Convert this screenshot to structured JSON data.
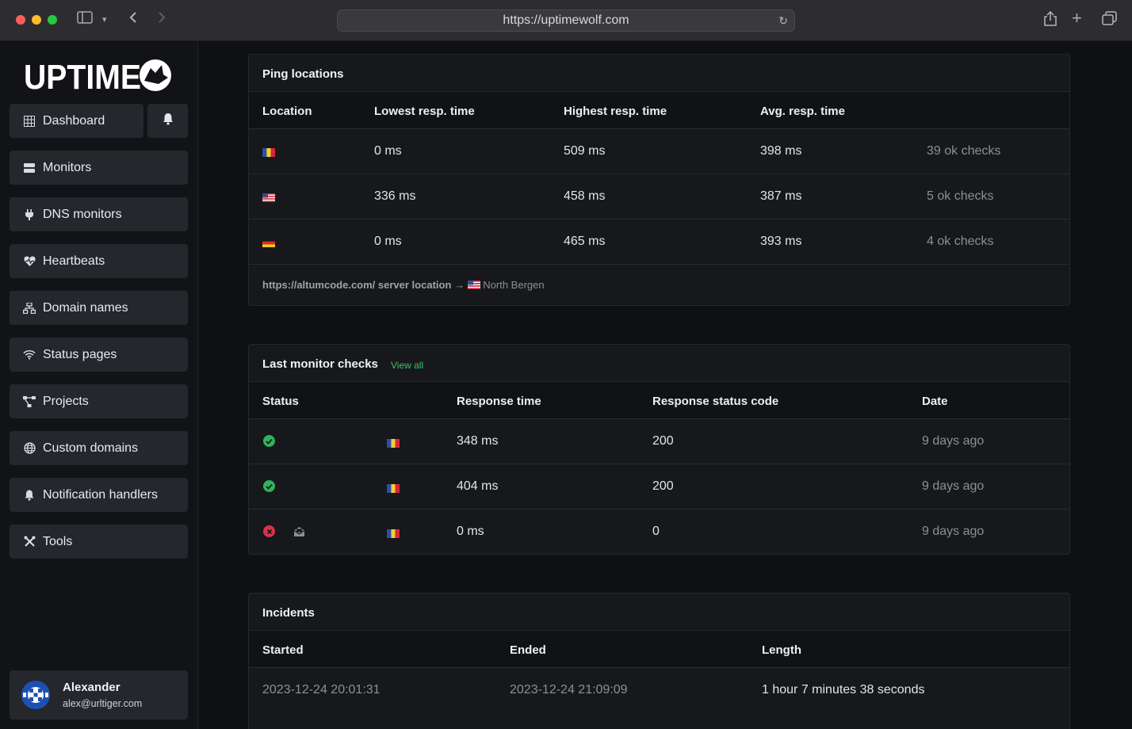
{
  "browser": {
    "url": "https://uptimewolf.com"
  },
  "sidebar": {
    "logo_text": "UPTIME",
    "items": [
      {
        "label": "Dashboard",
        "icon": "grid-icon"
      },
      {
        "label": "Monitors",
        "icon": "server-icon"
      },
      {
        "label": "DNS monitors",
        "icon": "plug-icon"
      },
      {
        "label": "Heartbeats",
        "icon": "heart-pulse-icon"
      },
      {
        "label": "Domain names",
        "icon": "network-icon"
      },
      {
        "label": "Status pages",
        "icon": "wifi-icon"
      },
      {
        "label": "Projects",
        "icon": "project-diagram-icon"
      },
      {
        "label": "Custom domains",
        "icon": "globe-icon"
      },
      {
        "label": "Notification handlers",
        "icon": "bell-icon"
      },
      {
        "label": "Tools",
        "icon": "tools-icon"
      }
    ],
    "user": {
      "name": "Alexander",
      "email": "alex@urltiger.com"
    }
  },
  "ping_locations": {
    "title": "Ping locations",
    "columns": [
      "Location",
      "Lowest resp. time",
      "Highest resp. time",
      "Avg. resp. time"
    ],
    "rows": [
      {
        "flag": "RO",
        "lowest": "0 ms",
        "highest": "509 ms",
        "avg": "398 ms",
        "checks": "39 ok checks"
      },
      {
        "flag": "US",
        "lowest": "336 ms",
        "highest": "458 ms",
        "avg": "387 ms",
        "checks": "5 ok checks"
      },
      {
        "flag": "DE",
        "lowest": "0 ms",
        "highest": "465 ms",
        "avg": "393 ms",
        "checks": "4 ok checks"
      }
    ],
    "server_location": {
      "label": "https://altumcode.com/ server location",
      "arrow": "→",
      "city": "North Bergen"
    }
  },
  "last_checks": {
    "title": "Last monitor checks",
    "view_all": "View all",
    "columns": [
      "Status",
      "Response time",
      "Response status code",
      "Date"
    ],
    "rows": [
      {
        "status": "ok",
        "response_time": "348 ms",
        "code": "200",
        "date": "9 days ago"
      },
      {
        "status": "ok",
        "response_time": "404 ms",
        "code": "200",
        "date": "9 days ago"
      },
      {
        "status": "error",
        "response_time": "0 ms",
        "code": "0",
        "date": "9 days ago"
      }
    ]
  },
  "incidents": {
    "title": "Incidents",
    "columns": [
      "Started",
      "Ended",
      "Length"
    ],
    "rows": [
      {
        "started": "2023-12-24 20:01:31",
        "ended": "2023-12-24 21:09:09",
        "length": "1 hour 7 minutes 38 seconds"
      }
    ]
  },
  "colors": {
    "accent_green": "#3fbf6c",
    "ok_green": "#2fb35b",
    "error_red": "#d6334a"
  }
}
